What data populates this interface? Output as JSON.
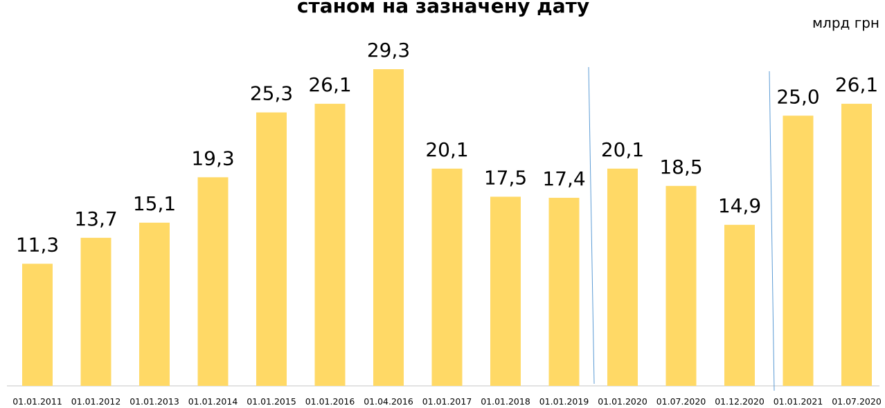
{
  "chart_data": {
    "type": "bar",
    "title": "станом на зазначену дату",
    "unit": "млрд грн",
    "categories": [
      "01.01.2011",
      "01.01.2012",
      "01.01.2013",
      "01.01.2014",
      "01.01.2015",
      "01.01.2016",
      "01.04.2016",
      "01.01.2017",
      "01.01.2018",
      "01.01.2019",
      "01.01.2020",
      "01.07.2020",
      "01.12.2020",
      "01.01.2021",
      "01.07.2020"
    ],
    "values": [
      11.3,
      13.7,
      15.1,
      19.3,
      25.3,
      26.1,
      29.3,
      20.1,
      17.5,
      17.4,
      20.1,
      18.5,
      14.9,
      25.0,
      26.1
    ],
    "value_labels": [
      "11,3",
      "13,7",
      "15,1",
      "19,3",
      "25,3",
      "26,1",
      "29,3",
      "20,1",
      "17,5",
      "17,4",
      "20,1",
      "18,5",
      "14,9",
      "25,0",
      "26,1"
    ],
    "color": "#ffd966"
  }
}
